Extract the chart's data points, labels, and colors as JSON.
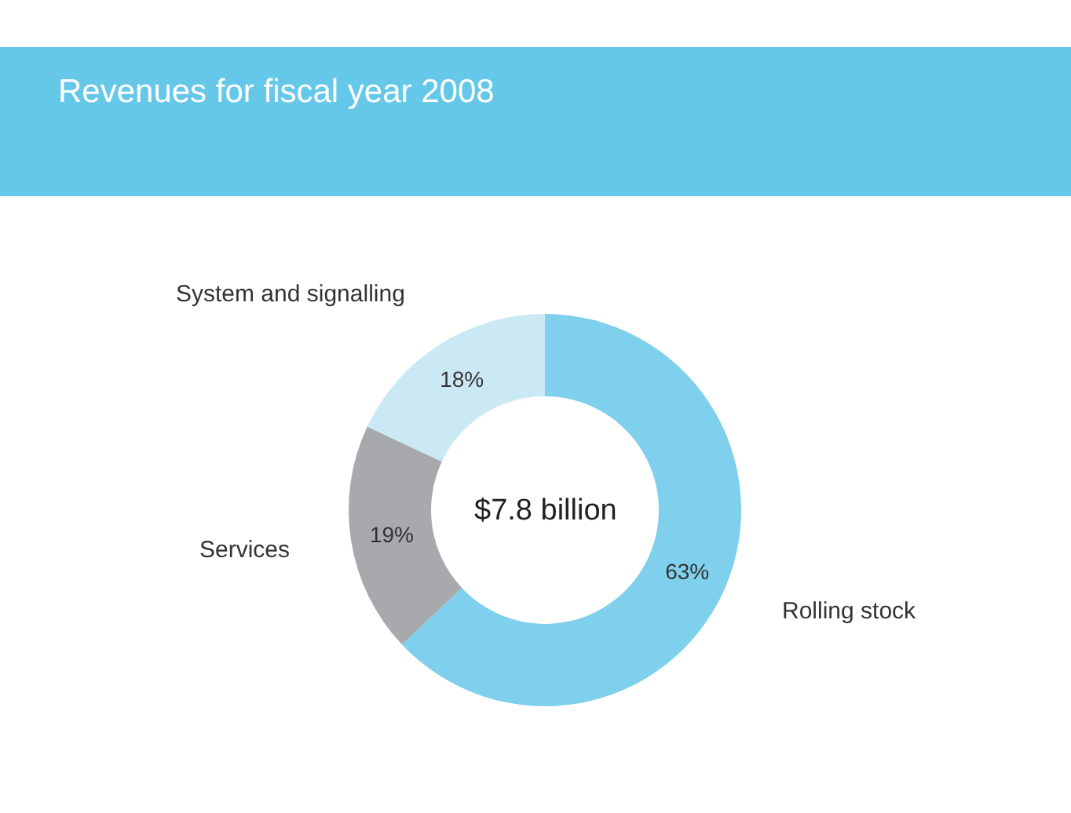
{
  "chart_data": {
    "type": "donut",
    "title": "Revenues for fiscal year 2008",
    "categories": [
      "Rolling stock",
      "Services",
      "System and signalling"
    ],
    "values": [
      63,
      19,
      18
    ],
    "colors": [
      "#7fd0ec",
      "#a7a9ac",
      "#cbe9f5"
    ],
    "value_labels": [
      "63%",
      "19%",
      "18%"
    ],
    "annotations": [
      "$7.8 billion"
    ]
  }
}
